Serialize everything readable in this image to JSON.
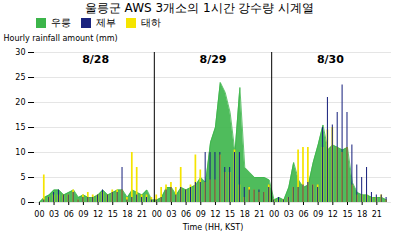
{
  "chart_data": {
    "type": "bar",
    "title": "울릉군 AWS 3개소의 1시간 강수량 시계열",
    "xlabel": "Time (HH, KST)",
    "ylabel": "Hourly rainfall amount (mm)",
    "categories": [
      "00",
      null,
      null,
      "03",
      null,
      null,
      "06",
      null,
      null,
      "09",
      null,
      null,
      "12",
      null,
      null,
      "15",
      null,
      null,
      "18",
      null,
      null,
      "21",
      null,
      null,
      "00",
      null,
      null,
      "03",
      null,
      null,
      "06",
      null,
      null,
      "09",
      null,
      null,
      "12",
      null,
      null,
      "15",
      null,
      null,
      "18",
      null,
      null,
      "21",
      null,
      null,
      "00",
      null,
      null,
      "03",
      null,
      null,
      "06",
      null,
      null,
      "09",
      null,
      null,
      "12",
      null,
      null,
      "15",
      null,
      null,
      "18",
      null,
      null,
      "21",
      null,
      null
    ],
    "annotations": [
      "8/28",
      "8/29",
      "8/30"
    ],
    "series": [
      {
        "name": "우릉",
        "type": "area",
        "color": "#3cb54a",
        "values": [
          0.0,
          1.0,
          1.5,
          2.5,
          2.5,
          1.5,
          2.0,
          2.5,
          1.0,
          1.5,
          1.0,
          1.0,
          1.5,
          2.5,
          1.5,
          2.0,
          2.5,
          2.5,
          1.0,
          2.5,
          2.0,
          1.5,
          2.5,
          0.5,
          0.5,
          1.0,
          3.0,
          3.0,
          1.5,
          3.0,
          2.5,
          3.0,
          3.5,
          5.0,
          4.0,
          12.0,
          15.0,
          24.0,
          22.0,
          18.0,
          10.0,
          23.0,
          7.0,
          6.0,
          5.0,
          5.0,
          5.0,
          4.5,
          0.5,
          1.0,
          0.5,
          3.0,
          8.0,
          4.5,
          3.0,
          3.5,
          8.0,
          11.5,
          15.5,
          10.5,
          11.5,
          11.0,
          10.5,
          11.0,
          4.0,
          2.0,
          1.5,
          1.5,
          1.0,
          1.0,
          1.0,
          0.5
        ]
      },
      {
        "name": "제부",
        "type": "bar",
        "color": "#1a237e",
        "values": [
          0.0,
          0.5,
          1.0,
          2.0,
          2.5,
          1.5,
          1.5,
          2.0,
          0.5,
          1.0,
          1.0,
          1.0,
          1.5,
          2.5,
          1.5,
          2.0,
          2.0,
          7.0,
          0.5,
          1.0,
          1.5,
          1.0,
          1.0,
          0.5,
          0.5,
          1.0,
          2.5,
          3.0,
          1.5,
          3.0,
          2.5,
          3.0,
          4.0,
          4.0,
          10.0,
          10.0,
          10.0,
          10.0,
          7.0,
          7.0,
          10.0,
          10.0,
          3.0,
          2.5,
          2.5,
          2.5,
          2.0,
          3.0,
          0.5,
          1.0,
          0.5,
          1.0,
          3.0,
          3.0,
          3.5,
          4.0,
          3.5,
          3.0,
          15.0,
          21.0,
          15.5,
          18.0,
          23.5,
          18.0,
          11.5,
          7.5,
          5.0,
          7.0,
          2.0,
          1.5,
          1.5,
          1.0
        ]
      },
      {
        "name": "태하",
        "type": "bar",
        "color": "#f5e400",
        "values": [
          0.0,
          5.5,
          1.0,
          1.5,
          1.5,
          1.5,
          1.5,
          2.5,
          0.5,
          1.5,
          2.0,
          1.5,
          1.5,
          2.0,
          1.5,
          2.5,
          2.5,
          2.5,
          1.0,
          10.0,
          7.0,
          1.5,
          1.5,
          1.0,
          1.5,
          3.0,
          3.5,
          4.0,
          3.0,
          7.0,
          2.5,
          3.5,
          9.5,
          6.5,
          4.0,
          4.5,
          4.5,
          9.5,
          6.0,
          6.0,
          10.5,
          3.5,
          1.0,
          3.0,
          2.5,
          2.0,
          2.0,
          3.5,
          0.5,
          0.5,
          0.5,
          1.0,
          3.0,
          10.5,
          11.0,
          11.0,
          3.5,
          3.5,
          11.0,
          14.5,
          15.0,
          11.0,
          10.0,
          11.0,
          3.5,
          1.5,
          1.5,
          1.5,
          1.0,
          1.0,
          1.5,
          0.5
        ]
      }
    ],
    "ylim": [
      0,
      30
    ],
    "yticks": [
      0,
      5,
      10,
      15,
      20,
      25,
      30
    ],
    "grid": true,
    "legend": "upper left"
  }
}
